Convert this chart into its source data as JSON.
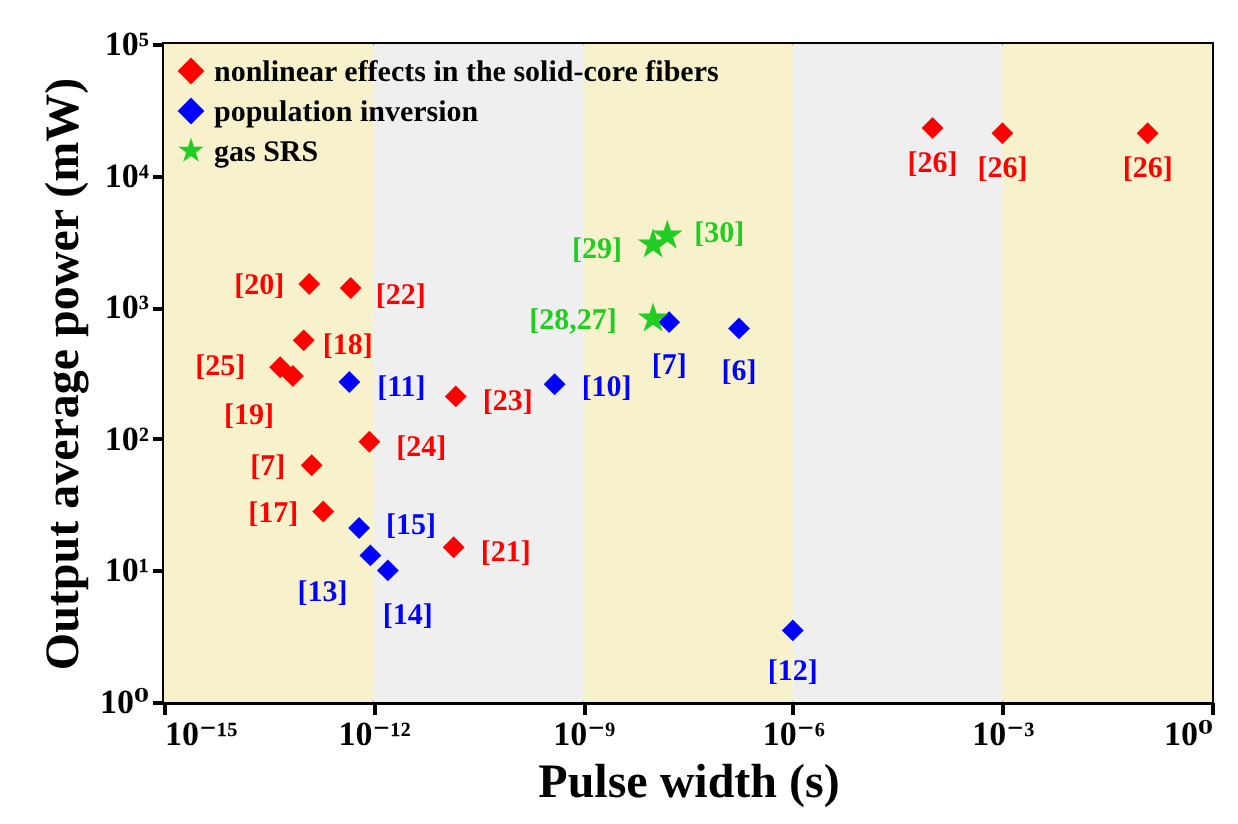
{
  "chart_data": {
    "type": "scatter",
    "xlabel": "Pulse width (s)",
    "ylabel": "Output average power (mW)",
    "log": "xy",
    "grid": false,
    "legend": "top left",
    "xlim": [
      1e-15,
      1
    ],
    "xticks": [
      {
        "value": 1e-15,
        "label": "10⁻¹⁵"
      },
      {
        "value": 1e-12,
        "label": "10⁻¹²"
      },
      {
        "value": 1e-09,
        "label": "10⁻⁹"
      },
      {
        "value": 1e-06,
        "label": "10⁻⁶"
      },
      {
        "value": 0.001,
        "label": "10⁻³"
      },
      {
        "value": 1,
        "label": "10⁰"
      }
    ],
    "ylim": [
      1,
      100000
    ],
    "yticks": [
      {
        "value": 1,
        "label": "10⁰"
      },
      {
        "value": 10,
        "label": "10¹"
      },
      {
        "value": 100,
        "label": "10²"
      },
      {
        "value": 1000,
        "label": "10³"
      },
      {
        "value": 10000,
        "label": "10⁴"
      },
      {
        "value": 100000,
        "label": "10⁵"
      }
    ],
    "bands": [
      {
        "axis": "x",
        "from": 1e-15,
        "to": 1e-12,
        "color": "#f7f2cc"
      },
      {
        "axis": "x",
        "from": 1e-12,
        "to": 1e-09,
        "color": "#efefef"
      },
      {
        "axis": "x",
        "from": 1e-09,
        "to": 1e-06,
        "color": "#f7f2cc"
      },
      {
        "axis": "x",
        "from": 1e-06,
        "to": 0.001,
        "color": "#efefef"
      },
      {
        "axis": "x",
        "from": 0.001,
        "to": 1,
        "color": "#f7f2cc"
      }
    ],
    "series": [
      {
        "name": "nonlinear effects in the solid-core fibers",
        "color": "#ff0000",
        "marker": "diamond",
        "x": [
          0.0001,
          0.001,
          0.12,
          1.2e-13,
          4.7e-13,
          1e-13,
          4.6e-14,
          7e-14,
          1.5e-11,
          8.7e-13,
          1.3e-13,
          1.9e-13,
          1.4e-11
        ],
        "values": [
          23000,
          21000,
          21000,
          1500,
          1400,
          560,
          350,
          300,
          210,
          95,
          63,
          28,
          15
        ]
      },
      {
        "name": "population inversion",
        "color": "#0000ff",
        "marker": "diamond",
        "x": [
          1.7e-08,
          1.7e-07,
          4.5e-13,
          3.9e-10,
          6.2e-13,
          9e-13,
          1.6e-12,
          1e-06
        ],
        "values": [
          770,
          690,
          270,
          260,
          21,
          13,
          10,
          3.5
        ]
      },
      {
        "name": "gas SRS",
        "color": "#22cc22",
        "marker": "star",
        "x": [
          1e-08,
          1.6e-08,
          1e-08
        ],
        "values": [
          3000,
          3500,
          820
        ]
      }
    ],
    "annotations": [
      {
        "text": "[26]",
        "x": 0.0001,
        "y": 23000
      },
      {
        "text": "[26]",
        "x": 0.001,
        "y": 21000
      },
      {
        "text": "[26]",
        "x": 0.12,
        "y": 21000
      },
      {
        "text": "[20]",
        "x": 1.2e-13,
        "y": 1500
      },
      {
        "text": "[22]",
        "x": 4.7e-13,
        "y": 1400
      },
      {
        "text": "[18]",
        "x": 1e-13,
        "y": 560
      },
      {
        "text": "[25]",
        "x": 4.6e-14,
        "y": 350
      },
      {
        "text": "[19]",
        "x": 7e-14,
        "y": 300
      },
      {
        "text": "[23]",
        "x": 1.5e-11,
        "y": 210
      },
      {
        "text": "[24]",
        "x": 8.7e-13,
        "y": 95
      },
      {
        "text": "[7]",
        "x": 1.3e-13,
        "y": 63
      },
      {
        "text": "[17]",
        "x": 1.9e-13,
        "y": 28
      },
      {
        "text": "[21]",
        "x": 1.4e-11,
        "y": 15
      },
      {
        "text": "[7]",
        "x": 1.7e-08,
        "y": 770
      },
      {
        "text": "[6]",
        "x": 1.7e-07,
        "y": 690
      },
      {
        "text": "[11]",
        "x": 4.5e-13,
        "y": 270
      },
      {
        "text": "[10]",
        "x": 3.9e-10,
        "y": 260
      },
      {
        "text": "[15]",
        "x": 6.2e-13,
        "y": 21
      },
      {
        "text": "[13]",
        "x": 9e-13,
        "y": 13
      },
      {
        "text": "[14]",
        "x": 1.6e-12,
        "y": 10
      },
      {
        "text": "[12]",
        "x": 1e-06,
        "y": 3.5
      },
      {
        "text": "[29]",
        "x": 1e-08,
        "y": 3000
      },
      {
        "text": "[30]",
        "x": 1.6e-08,
        "y": 3500
      },
      {
        "text": "[28,27]",
        "x": 1e-08,
        "y": 820
      }
    ]
  }
}
